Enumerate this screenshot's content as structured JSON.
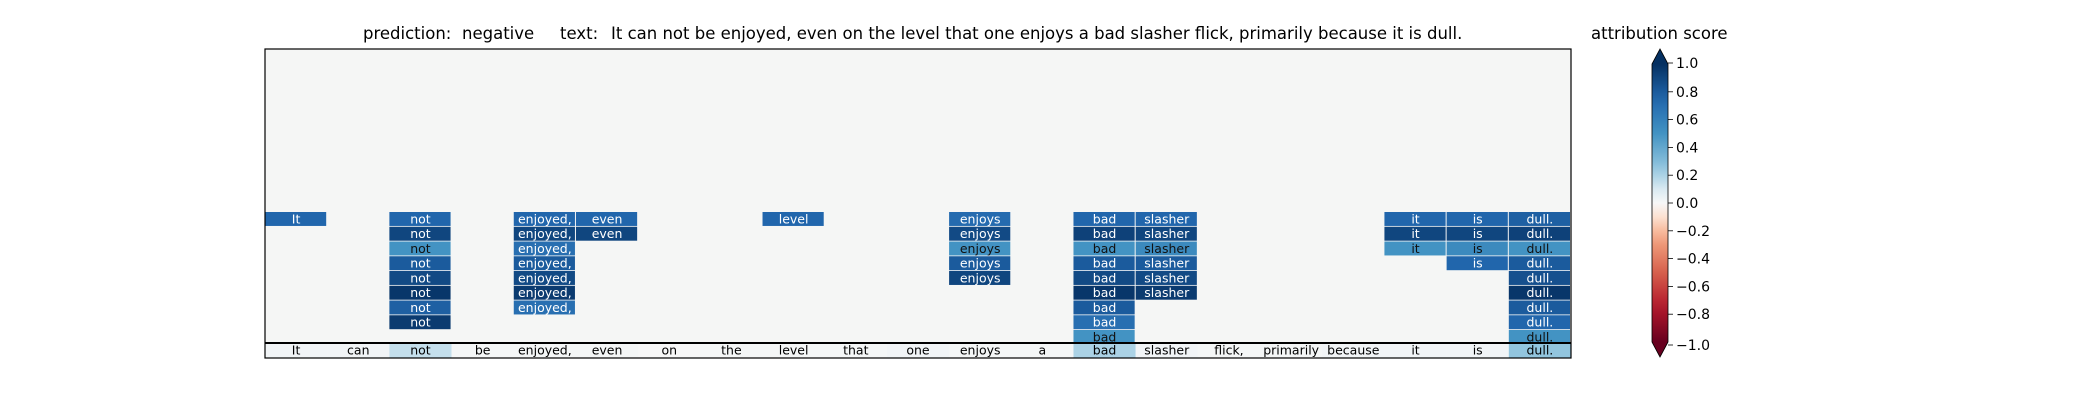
{
  "chart_data": {
    "type": "heatmap",
    "prediction_label": "prediction:",
    "prediction": "negative",
    "text_label": "text:",
    "text": "It can not be enjoyed, even on the level that one enjoys a bad slasher flick, primarily because it is dull.",
    "colorbar_title": "attribution score",
    "colorbar_range": [
      -1.0,
      1.0
    ],
    "colorbar_ticks": [
      "1.0",
      "0.8",
      "0.6",
      "0.4",
      "0.2",
      "0.0",
      "−0.2",
      "−0.4",
      "−0.6",
      "−0.8",
      "−1.0"
    ],
    "colorbar_extend": "both",
    "colormap": "RdBu",
    "background_color": "#f5f6f5",
    "tokens": [
      "It",
      "can",
      "not",
      "be",
      "enjoyed,",
      "even",
      "on",
      "the",
      "level",
      "that",
      "one",
      "enjoys",
      "a",
      "bad",
      "slasher",
      "flick,",
      "primarily",
      "because",
      "it",
      "is",
      "dull."
    ],
    "token_scores": [
      0.02,
      0.02,
      0.15,
      0.01,
      0.01,
      0.01,
      0.0,
      0.01,
      0.01,
      0.01,
      0.02,
      0.01,
      0.01,
      0.2,
      0.02,
      0.01,
      0.01,
      0.02,
      0.02,
      0.02,
      0.25
    ],
    "layers": [
      [
        0.75,
        0.0,
        0.75,
        0.0,
        0.75,
        0.75,
        0.0,
        0.0,
        0.75,
        0.0,
        0.0,
        0.72,
        0.0,
        0.75,
        0.75,
        0.0,
        0.0,
        0.0,
        0.75,
        0.75,
        0.78
      ],
      [
        0.0,
        0.0,
        0.9,
        0.0,
        0.9,
        0.9,
        0.0,
        0.0,
        0.0,
        0.0,
        0.0,
        0.88,
        0.0,
        0.92,
        0.9,
        0.0,
        0.0,
        0.0,
        0.9,
        0.9,
        0.92
      ],
      [
        0.0,
        0.0,
        0.5,
        0.0,
        0.7,
        0.0,
        0.0,
        0.0,
        0.0,
        0.0,
        0.0,
        0.5,
        0.0,
        0.5,
        0.55,
        0.0,
        0.0,
        0.0,
        0.5,
        0.55,
        0.5
      ],
      [
        0.0,
        0.0,
        0.8,
        0.0,
        0.8,
        0.0,
        0.0,
        0.0,
        0.0,
        0.0,
        0.0,
        0.8,
        0.0,
        0.8,
        0.8,
        0.0,
        0.0,
        0.0,
        0.0,
        0.75,
        0.8
      ],
      [
        0.0,
        0.0,
        0.88,
        0.0,
        0.88,
        0.0,
        0.0,
        0.0,
        0.0,
        0.0,
        0.0,
        0.9,
        0.0,
        0.88,
        0.88,
        0.0,
        0.0,
        0.0,
        0.0,
        0.0,
        0.85
      ],
      [
        0.0,
        0.0,
        0.97,
        0.0,
        0.95,
        0.0,
        0.0,
        0.0,
        0.0,
        0.0,
        0.0,
        0.0,
        0.0,
        0.97,
        0.95,
        0.0,
        0.0,
        0.0,
        0.0,
        0.0,
        0.97
      ],
      [
        0.0,
        0.0,
        0.78,
        0.0,
        0.7,
        0.0,
        0.0,
        0.0,
        0.0,
        0.0,
        0.0,
        0.0,
        0.0,
        0.8,
        0.0,
        0.0,
        0.0,
        0.0,
        0.0,
        0.0,
        0.8
      ],
      [
        0.0,
        0.0,
        0.95,
        0.0,
        0.0,
        0.0,
        0.0,
        0.0,
        0.0,
        0.0,
        0.0,
        0.0,
        0.0,
        0.7,
        0.0,
        0.0,
        0.0,
        0.0,
        0.0,
        0.0,
        0.75
      ],
      [
        0.0,
        0.0,
        0.0,
        0.0,
        0.0,
        0.0,
        0.0,
        0.0,
        0.0,
        0.0,
        0.0,
        0.0,
        0.0,
        0.5,
        0.0,
        0.0,
        0.0,
        0.0,
        0.0,
        0.0,
        0.5
      ]
    ]
  }
}
